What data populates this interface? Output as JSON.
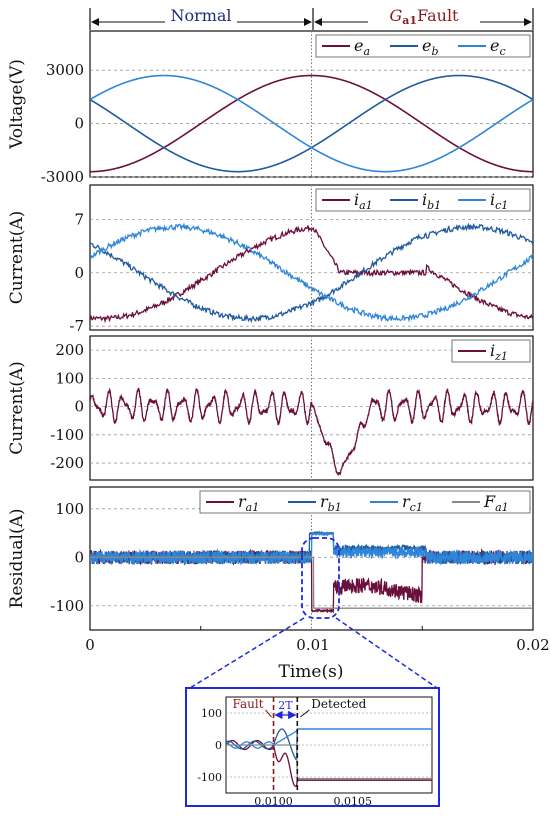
{
  "header": {
    "normal_label": "Normal",
    "fault_label_main": "G",
    "fault_label_sub": "a1",
    "fault_label_tail": "Fault"
  },
  "xaxis": {
    "label": "Time(s)",
    "ticks": [
      "0",
      "0.01",
      "0.02"
    ],
    "xlim": [
      0,
      0.02
    ]
  },
  "colors": {
    "a": "#6b0f3c",
    "b": "#1f5a9e",
    "c": "#2f86d8",
    "F": "#888888",
    "header_left": "#1f2a7a",
    "header_right": "#8b1a1a",
    "zoom": "#1b2bdc"
  },
  "chart_data": [
    {
      "type": "line",
      "ylabel": "Voltage(V)",
      "ylim": [
        -3000,
        5200
      ],
      "yticks": [
        "3000",
        "0",
        "-3000"
      ],
      "grid": true,
      "legend": "top-right",
      "series": [
        {
          "name": "e",
          "sub": "a",
          "color": "#6b0f3c",
          "amplitude": 2700,
          "phase_deg": -90
        },
        {
          "name": "e",
          "sub": "b",
          "color": "#1f5a9e",
          "amplitude": 2700,
          "phase_deg": 150
        },
        {
          "name": "e",
          "sub": "c",
          "color": "#2f86d8",
          "amplitude": 2700,
          "phase_deg": 30
        }
      ]
    },
    {
      "type": "line",
      "ylabel": "Current(A)",
      "ylim": [
        -7.5,
        11.5
      ],
      "yticks": [
        "7",
        "0",
        "-7"
      ],
      "grid": true,
      "legend": "top-right",
      "series": [
        {
          "name": "i",
          "sub": "a1",
          "color": "#6b0f3c",
          "amplitude": 6,
          "phase_deg": -100
        },
        {
          "name": "i",
          "sub": "b1",
          "color": "#1f5a9e",
          "amplitude": 6,
          "phase_deg": 140
        },
        {
          "name": "i",
          "sub": "c1",
          "color": "#2f86d8",
          "amplitude": 6,
          "phase_deg": 20
        }
      ]
    },
    {
      "type": "line",
      "ylabel": "Current(A)",
      "ylim": [
        -260,
        250
      ],
      "yticks": [
        "200",
        "100",
        "0",
        "-100",
        "-200"
      ],
      "grid": true,
      "legend": "top-right",
      "series": [
        {
          "name": "i",
          "sub": "z1",
          "color": "#6b0f3c",
          "fault_dip_min": -240,
          "dip_time": 0.0113
        }
      ]
    },
    {
      "type": "line",
      "ylabel": "Residual(A)",
      "ylim": [
        -150,
        145
      ],
      "yticks": [
        "100",
        "0",
        "-100"
      ],
      "grid": true,
      "legend": "top",
      "series": [
        {
          "name": "r",
          "sub": "a1",
          "color": "#6b0f3c",
          "fault_level": -110,
          "window": [
            0.011,
            0.015
          ]
        },
        {
          "name": "r",
          "sub": "b1",
          "color": "#1f5a9e",
          "fault_level": 50
        },
        {
          "name": "r",
          "sub": "c1",
          "color": "#2f86d8",
          "fault_level": 10
        },
        {
          "name": "F",
          "sub": "a1",
          "color": "#888888",
          "step_time": 0.0101,
          "step_value": -105
        }
      ]
    },
    {
      "type": "line",
      "inset": true,
      "xlim": [
        0.0097,
        0.011
      ],
      "xticks": [
        "0.0100",
        "0.0105"
      ],
      "ylim": [
        -150,
        150
      ],
      "yticks": [
        "100",
        "0",
        "-100"
      ],
      "annotations": {
        "fault": "Fault",
        "detected": "Detected",
        "window": "2T",
        "fault_time": 0.01,
        "detected_time": 0.01015
      }
    }
  ]
}
